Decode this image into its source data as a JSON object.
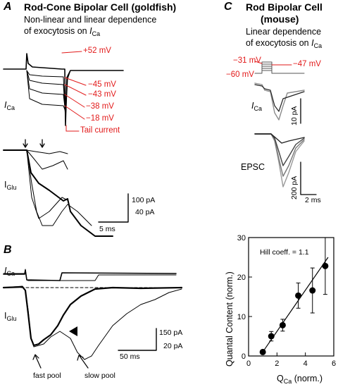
{
  "panels": {
    "A": {
      "letter": "A",
      "title": "Rod-Cone Bipolar Cell (goldfish)",
      "subtitle_line1": "Non-linear and linear dependence",
      "subtitle_line2": "of exocytosis on",
      "subtitle_var": "I",
      "subtitle_sub": "Ca",
      "voltages": [
        "+52 mV",
        "−45 mV",
        "−43 mV",
        "−38 mV",
        "−18 mV"
      ],
      "tail_label": "Tail current",
      "ica_label": "I",
      "ica_sub": "Ca",
      "iglu_label": "I",
      "iglu_sub": "Glu",
      "scale_current_1": "100 pA",
      "scale_current_2": "40 pA",
      "scale_time": "5 ms"
    },
    "B": {
      "letter": "B",
      "ica_label": "I",
      "ica_sub": "Ca",
      "iglu_label": "I",
      "iglu_sub": "Glu",
      "fast_pool": "fast pool",
      "slow_pool": "slow pool",
      "scale_current_1": "150 pA",
      "scale_current_2": "20 pA",
      "scale_time": "50 ms"
    },
    "C": {
      "letter": "C",
      "title": "Rod Bipolar Cell",
      "title2": "(mouse)",
      "subtitle_line1": "Linear dependence",
      "subtitle_line2": "of exocytosis on",
      "subtitle_var": "I",
      "subtitle_sub": "Ca",
      "voltages": [
        "−31 mV",
        "−47 mV",
        "−60 mV"
      ],
      "ica_label": "I",
      "ica_sub": "Ca",
      "ica_scale": "10 pA",
      "epsc_label": "EPSC",
      "epsc_scale": "200 pA",
      "time_scale": "2 ms"
    }
  },
  "chart_data": {
    "type": "scatter",
    "annotation": "Hill coeff. = 1.1",
    "xlabel": "Q",
    "xlabel_sub": "Ca",
    "xlabel_suffix": " (norm.)",
    "ylabel": "Quantal Content (norm.)",
    "xlim": [
      0,
      6
    ],
    "ylim": [
      0,
      30
    ],
    "xticks": [
      0,
      2,
      4,
      6
    ],
    "yticks": [
      0,
      10,
      20,
      30
    ],
    "points": [
      {
        "x": 1.0,
        "y": 1.0,
        "err": 0
      },
      {
        "x": 1.6,
        "y": 5.0,
        "err": 1.2
      },
      {
        "x": 2.4,
        "y": 7.8,
        "err": 1.5
      },
      {
        "x": 3.5,
        "y": 15.3,
        "err": 3.2
      },
      {
        "x": 4.5,
        "y": 16.6,
        "err": 5.7
      },
      {
        "x": 5.4,
        "y": 22.8,
        "err": 7.2
      }
    ],
    "fit": {
      "x": [
        0.9,
        5.6
      ],
      "y": [
        0.5,
        25.0
      ]
    }
  }
}
